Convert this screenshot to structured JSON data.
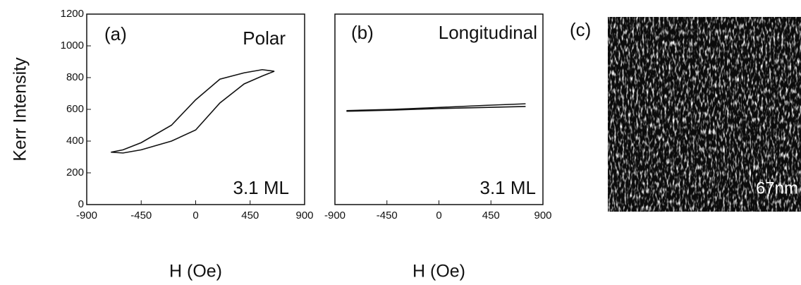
{
  "chart_data": [
    {
      "type": "line",
      "annotations": [
        "(a)",
        "Polar",
        "3.1 ML"
      ],
      "y_label": "Kerr Intensity",
      "x_label": "H (Oe)",
      "xlim": [
        -900,
        900
      ],
      "xticks": [
        -900,
        -450,
        0,
        450,
        900
      ],
      "ylim": [
        0,
        1200
      ],
      "yticks": [
        0,
        200,
        400,
        600,
        800,
        1000,
        1200
      ],
      "series": [
        {
          "color": "#111111",
          "x": [
            650,
            550,
            400,
            200,
            0,
            -200,
            -450,
            -600,
            -700
          ],
          "values": [
            840,
            850,
            830,
            790,
            660,
            500,
            390,
            345,
            330
          ]
        },
        {
          "color": "#111111",
          "x": [
            -700,
            -600,
            -450,
            -200,
            0,
            200,
            400,
            550,
            650
          ],
          "values": [
            330,
            325,
            345,
            400,
            470,
            640,
            760,
            810,
            840
          ]
        }
      ]
    },
    {
      "type": "line",
      "annotations": [
        "(b)",
        "Longitudinal",
        "3.1 ML"
      ],
      "x_label": "H (Oe)",
      "xlim": [
        -900,
        900
      ],
      "xticks": [
        -900,
        -450,
        0,
        450,
        900
      ],
      "ylim": [
        0,
        1200
      ],
      "series": [
        {
          "color": "#111111",
          "x": [
            -800,
            -400,
            0,
            400,
            750
          ],
          "values": [
            592,
            600,
            612,
            625,
            635
          ]
        },
        {
          "color": "#111111",
          "x": [
            -800,
            -400,
            0,
            400,
            750
          ],
          "values": [
            588,
            595,
            605,
            612,
            618
          ]
        }
      ]
    }
  ],
  "image_panel": {
    "label": "(c)",
    "scale_label": "67nm"
  }
}
